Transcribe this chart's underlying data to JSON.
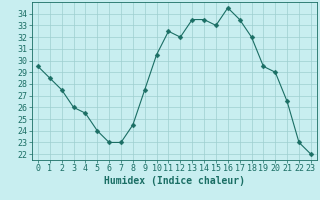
{
  "x": [
    0,
    1,
    2,
    3,
    4,
    5,
    6,
    7,
    8,
    9,
    10,
    11,
    12,
    13,
    14,
    15,
    16,
    17,
    18,
    19,
    20,
    21,
    22,
    23
  ],
  "y": [
    29.5,
    28.5,
    27.5,
    26.0,
    25.5,
    24.0,
    23.0,
    23.0,
    24.5,
    27.5,
    30.5,
    32.5,
    32.0,
    33.5,
    33.5,
    33.0,
    34.5,
    33.5,
    32.0,
    29.5,
    29.0,
    26.5,
    23.0,
    22.0
  ],
  "line_color": "#1a6e64",
  "marker": "D",
  "marker_size": 2.5,
  "bg_color": "#c8eef0",
  "grid_color": "#9ecfcf",
  "xlabel": "Humidex (Indice chaleur)",
  "xlabel_fontsize": 7,
  "tick_fontsize": 6,
  "ylim": [
    21.5,
    35.0
  ],
  "yticks": [
    22,
    23,
    24,
    25,
    26,
    27,
    28,
    29,
    30,
    31,
    32,
    33,
    34
  ],
  "xlim": [
    -0.5,
    23.5
  ],
  "xticks": [
    0,
    1,
    2,
    3,
    4,
    5,
    6,
    7,
    8,
    9,
    10,
    11,
    12,
    13,
    14,
    15,
    16,
    17,
    18,
    19,
    20,
    21,
    22,
    23
  ]
}
